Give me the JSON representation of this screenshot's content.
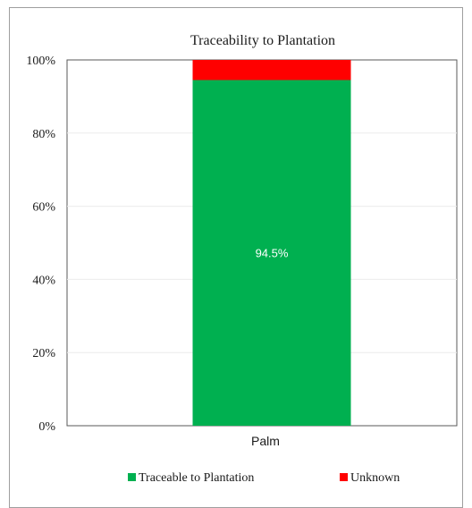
{
  "chart_data": {
    "type": "bar",
    "stacked": true,
    "title": "Traceability to Plantation",
    "categories": [
      "Palm"
    ],
    "series": [
      {
        "name": "Traceable to Plantation",
        "values": [
          94.5
        ],
        "color": "#00b050",
        "data_label": "94.5%"
      },
      {
        "name": "Unknown",
        "values": [
          5.5
        ],
        "color": "#ff0000"
      }
    ],
    "ylim": [
      0,
      100
    ],
    "yticks": [
      "0%",
      "20%",
      "40%",
      "60%",
      "80%",
      "100%"
    ],
    "grid": true,
    "legend": "bottom"
  }
}
